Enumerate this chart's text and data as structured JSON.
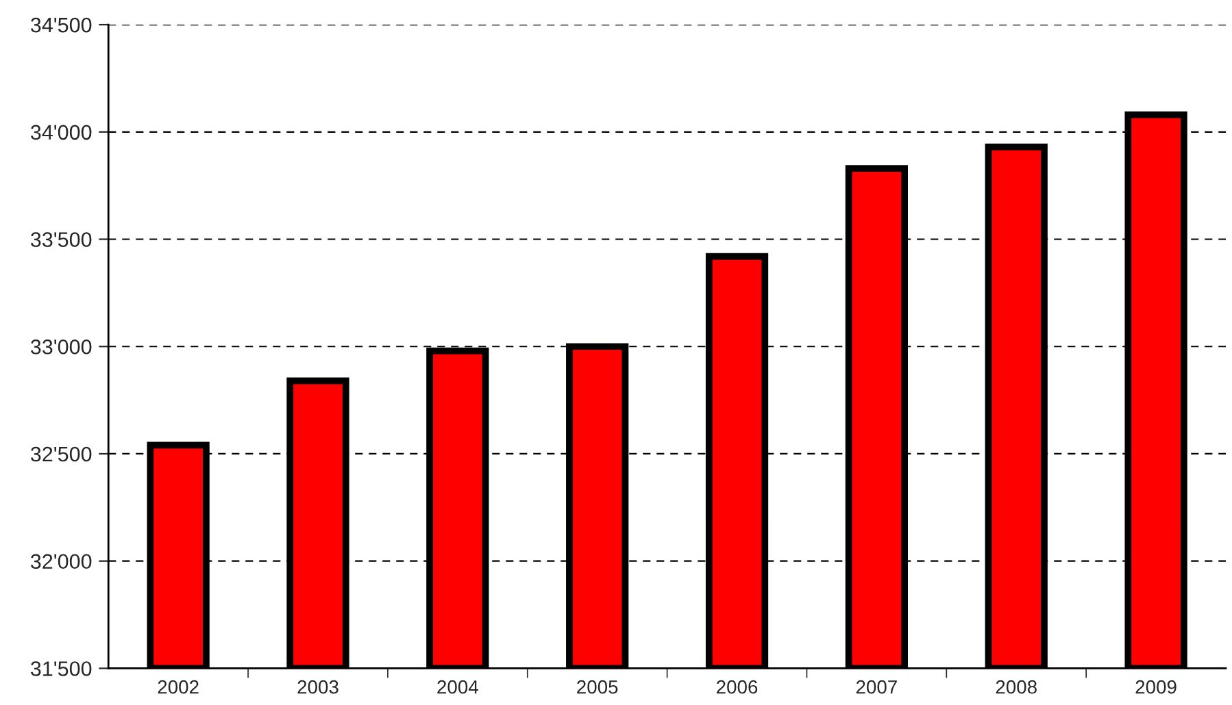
{
  "chart_data": {
    "type": "bar",
    "categories": [
      "2002",
      "2003",
      "2004",
      "2005",
      "2006",
      "2007",
      "2008",
      "2009"
    ],
    "values": [
      32540,
      32840,
      32980,
      33000,
      33420,
      33830,
      33930,
      34080
    ],
    "color": "#ff0000",
    "ylim": [
      31500,
      34500
    ],
    "yticks": [
      {
        "value": 31500,
        "label": "31'500"
      },
      {
        "value": 32000,
        "label": "32'000"
      },
      {
        "value": 32500,
        "label": "32'500"
      },
      {
        "value": 33000,
        "label": "33'000"
      },
      {
        "value": 33500,
        "label": "33'500"
      },
      {
        "value": 34000,
        "label": "34'000"
      },
      {
        "value": 34500,
        "label": "34'500"
      }
    ],
    "grid": "y",
    "line_style": "dashed"
  }
}
